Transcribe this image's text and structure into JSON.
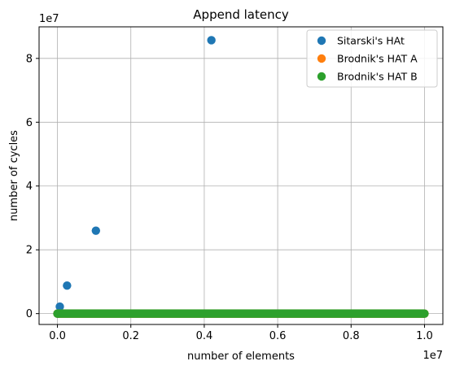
{
  "chart_data": {
    "type": "scatter",
    "title": "Append latency",
    "xlabel": "number of elements",
    "ylabel": "number of cycles",
    "x_offset_label": "1e7",
    "y_offset_label": "1e7",
    "xlim": [
      -500000,
      10500000
    ],
    "ylim": [
      -3400000,
      89900000
    ],
    "x_ticks": [
      0,
      2000000,
      4000000,
      6000000,
      8000000,
      10000000
    ],
    "x_tick_labels": [
      "0.0",
      "0.2",
      "0.4",
      "0.6",
      "0.8",
      "1.0"
    ],
    "y_ticks": [
      0,
      20000000,
      40000000,
      60000000,
      80000000
    ],
    "y_tick_labels": [
      "0",
      "2",
      "4",
      "6",
      "8"
    ],
    "grid": true,
    "legend_position": "top-right",
    "series": [
      {
        "name": "Sitarski's HAt",
        "color": "#1f77b4",
        "points": [
          [
            0,
            0
          ],
          [
            10000,
            10000
          ],
          [
            20000,
            20000
          ],
          [
            40000,
            40000
          ],
          [
            65000,
            2200000
          ],
          [
            262000,
            8800000
          ],
          [
            1048000,
            26000000
          ],
          [
            4194000,
            85700000
          ]
        ]
      },
      {
        "name": "Brodnik's HAT A",
        "color": "#ff7f0e",
        "dense_range": {
          "x_from": 0,
          "x_to": 10000000,
          "y": 0
        },
        "points": []
      },
      {
        "name": "Brodnik's HAT B",
        "color": "#2ca02c",
        "dense_range": {
          "x_from": 0,
          "x_to": 10000000,
          "y": 0
        },
        "points": []
      }
    ]
  }
}
